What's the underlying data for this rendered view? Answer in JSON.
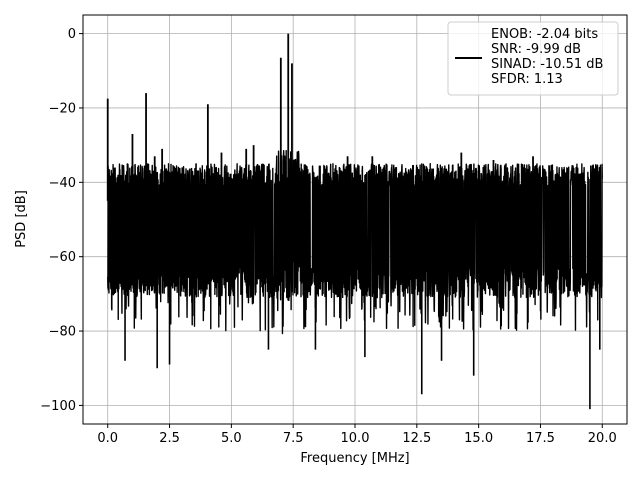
{
  "chart_data": {
    "type": "line",
    "xlabel": "Frequency [MHz]",
    "ylabel": "PSD [dB]",
    "xlim": [
      -1.0,
      21.0
    ],
    "ylim": [
      -105,
      5
    ],
    "xticks": [
      0.0,
      2.5,
      5.0,
      7.5,
      10.0,
      12.5,
      15.0,
      17.5,
      20.0
    ],
    "xtick_labels": [
      "0.0",
      "2.5",
      "5.0",
      "7.5",
      "10.0",
      "12.5",
      "15.0",
      "17.5",
      "20.0"
    ],
    "yticks": [
      0,
      -20,
      -40,
      -60,
      -80,
      -100
    ],
    "ytick_labels": [
      "0",
      "−20",
      "−40",
      "−60",
      "−80",
      "−100"
    ],
    "grid": true,
    "legend_position": "top-right",
    "legend_lines": [
      "ENOB: -2.04 bits",
      "SNR: -9.99 dB",
      "SINAD: -10.51 dB",
      "SFDR: 1.13"
    ],
    "series": [
      {
        "color": "#000000",
        "noise_floor": {
          "x_range": [
            0.0,
            20.0
          ],
          "upper_db": -38,
          "lower_db": -66
        },
        "peaks": [
          {
            "x": 0.0,
            "y": -17.5
          },
          {
            "x": 0.35,
            "y": -40
          },
          {
            "x": 1.0,
            "y": -27
          },
          {
            "x": 1.55,
            "y": -16
          },
          {
            "x": 1.9,
            "y": -33
          },
          {
            "x": 2.2,
            "y": -31
          },
          {
            "x": 4.05,
            "y": -19
          },
          {
            "x": 4.6,
            "y": -32
          },
          {
            "x": 5.6,
            "y": -31
          },
          {
            "x": 5.9,
            "y": -30
          },
          {
            "x": 7.0,
            "y": -6.5
          },
          {
            "x": 7.3,
            "y": 0
          },
          {
            "x": 7.45,
            "y": -8
          },
          {
            "x": 9.7,
            "y": -33
          },
          {
            "x": 10.7,
            "y": -33
          },
          {
            "x": 14.3,
            "y": -32
          },
          {
            "x": 15.6,
            "y": -34
          },
          {
            "x": 17.2,
            "y": -33
          }
        ],
        "dips": [
          {
            "x": 2.0,
            "y": -90
          },
          {
            "x": 2.5,
            "y": -89
          },
          {
            "x": 0.7,
            "y": -88
          },
          {
            "x": 6.5,
            "y": -85
          },
          {
            "x": 8.4,
            "y": -85
          },
          {
            "x": 10.4,
            "y": -87
          },
          {
            "x": 12.7,
            "y": -97
          },
          {
            "x": 13.5,
            "y": -88
          },
          {
            "x": 14.8,
            "y": -92
          },
          {
            "x": 19.5,
            "y": -101
          },
          {
            "x": 19.9,
            "y": -85
          }
        ]
      }
    ]
  }
}
